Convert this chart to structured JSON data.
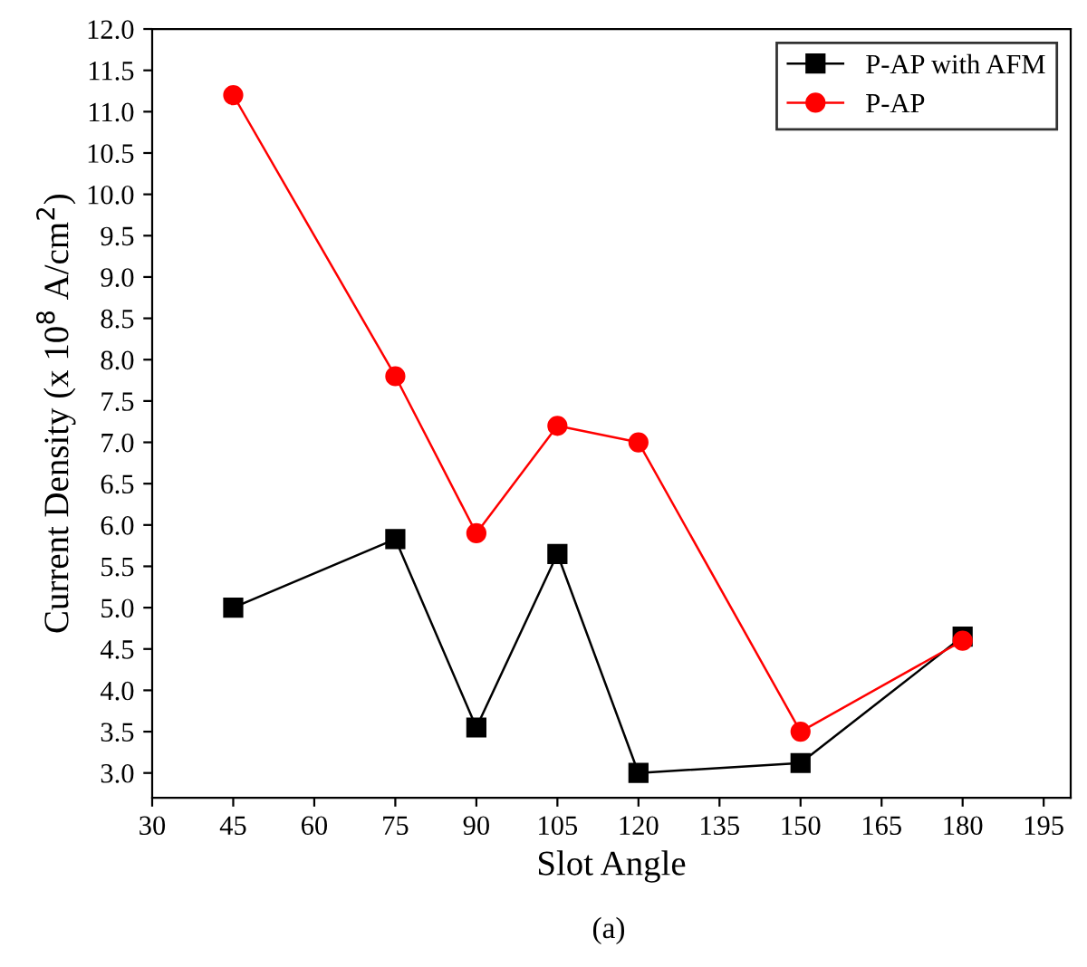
{
  "chart_data": {
    "type": "line",
    "xlabel": "Slot Angle",
    "ylabel": "Current Density (x 10$^{8}$ A/cm$^{2}$)",
    "annotations": [
      "(a)"
    ],
    "x": [
      45,
      75,
      90,
      105,
      120,
      150,
      180
    ],
    "series": [
      {
        "name": "P-AP with AFM",
        "color": "#000000",
        "marker": "square",
        "values": [
          5.0,
          5.83,
          3.55,
          5.65,
          3.0,
          3.12,
          4.65
        ]
      },
      {
        "name": "P-AP",
        "color": "#ff0000",
        "marker": "circle",
        "values": [
          11.2,
          7.8,
          5.9,
          7.2,
          7.0,
          3.5,
          4.6
        ]
      }
    ],
    "xlim": [
      30,
      200
    ],
    "xticks": [
      30,
      45,
      60,
      75,
      90,
      105,
      120,
      135,
      150,
      165,
      180,
      195
    ],
    "ylim": [
      2.7,
      12.0
    ],
    "yticks": [
      {
        "value": 3,
        "label": "3.0"
      },
      3.5,
      {
        "value": 4,
        "label": "4.0"
      },
      4.5,
      {
        "value": 5,
        "label": "5.0"
      },
      5.5,
      {
        "value": 6,
        "label": "6.0"
      },
      6.5,
      {
        "value": 7,
        "label": "7.0"
      },
      7.5,
      {
        "value": 8,
        "label": "8.0"
      },
      8.5,
      {
        "value": 9,
        "label": "9.0"
      },
      9.5,
      {
        "value": 10,
        "label": "10.0"
      },
      10.5,
      {
        "value": 11,
        "label": "11.0"
      },
      11.5,
      {
        "value": 12,
        "label": "12.0"
      }
    ],
    "legend": "top right",
    "grid": false,
    "line_style": "solid"
  }
}
